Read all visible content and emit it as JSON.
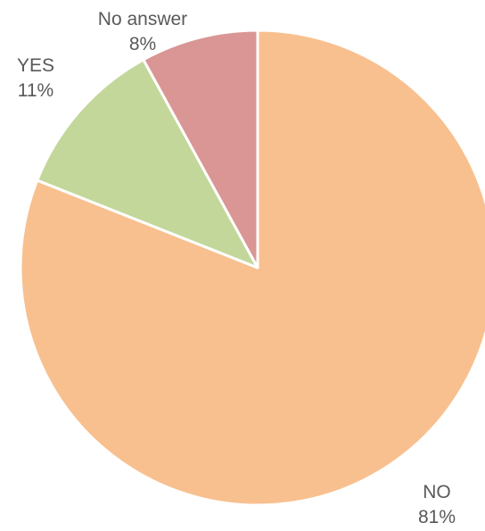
{
  "chart_data": {
    "type": "pie",
    "title": "",
    "start_angle_deg": 0,
    "direction": "clockwise",
    "slices": [
      {
        "label": "NO",
        "value": 81,
        "percent_label": "81%",
        "color": "#F8C08F"
      },
      {
        "label": "YES",
        "value": 11,
        "percent_label": "11%",
        "color": "#C4D79B"
      },
      {
        "label": "No answer",
        "value": 8,
        "percent_label": "8%",
        "color": "#D99694"
      }
    ],
    "slice_border_color": "#ffffff",
    "label_color": "#595959",
    "legend": "none"
  }
}
